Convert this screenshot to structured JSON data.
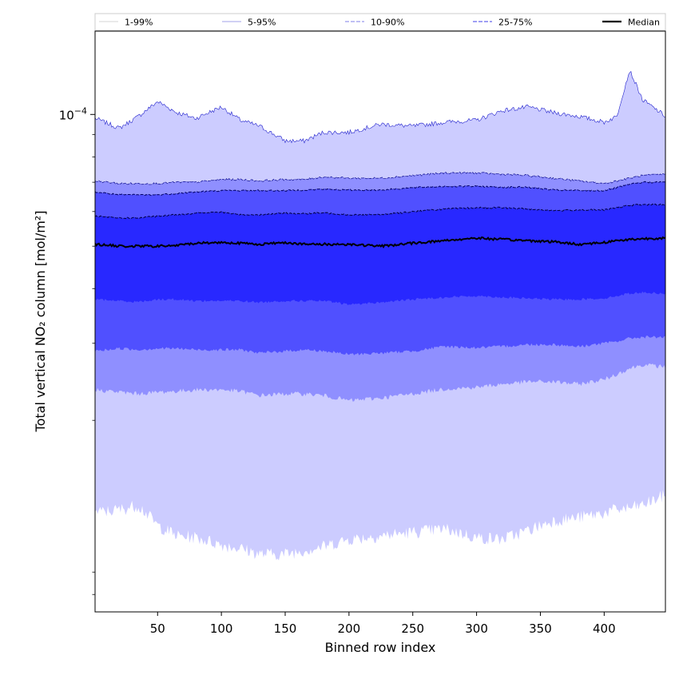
{
  "chart_data": {
    "type": "area",
    "title": "",
    "xlabel": "Binned row index",
    "ylabel": "Total vertical NO₂ column [mol/m²]",
    "x_ticks": [
      50,
      100,
      150,
      200,
      250,
      300,
      350,
      400
    ],
    "y_tick_labels": [
      {
        "value": 0.0001,
        "base": "10",
        "exponent": "−4"
      }
    ],
    "yscale": "log",
    "xlim": [
      1,
      448
    ],
    "ylim": [
      7.3e-06,
      0.000155
    ],
    "legend_position": "top",
    "legend": [
      {
        "label": "1-99%",
        "color": "#dddddd",
        "style": "solid"
      },
      {
        "label": "5-95%",
        "color": "#b3b3ee",
        "style": "solid"
      },
      {
        "label": "10-90%",
        "color": "#9999ee",
        "style": "dashed"
      },
      {
        "label": "25-75%",
        "color": "#6666ee",
        "style": "dashed"
      },
      {
        "label": "Median",
        "color": "#000000",
        "style": "solid"
      }
    ],
    "x": [
      1,
      20,
      35,
      50,
      65,
      80,
      100,
      115,
      130,
      150,
      165,
      180,
      200,
      225,
      250,
      275,
      300,
      320,
      340,
      360,
      380,
      400,
      410,
      420,
      430,
      448
    ],
    "bands": [
      {
        "name": "1-99%",
        "color": "#ccccff",
        "upper": [
          9.8e-05,
          9.3e-05,
          9.9e-05,
          0.000107,
          0.000101,
          9.8e-05,
          0.000104,
          9.7e-05,
          9.4e-05,
          8.7e-05,
          8.7e-05,
          9.1e-05,
          9.1e-05,
          9.5e-05,
          9.4e-05,
          9.6e-05,
          9.7e-05,
          0.000102,
          0.000104,
          0.000101,
          9.9e-05,
          9.6e-05,
          9.9e-05,
          0.000126,
          0.000108,
          9.9e-05
        ],
        "lower": [
          1.23e-05,
          1.25e-05,
          1.28e-05,
          1.15e-05,
          1.09e-05,
          1.08e-05,
          1.04e-05,
          1.02e-05,
          9.9e-06,
          9.9e-06,
          1.01e-05,
          1.03e-05,
          1.07e-05,
          1.09e-05,
          1.11e-05,
          1.13e-05,
          1.08e-05,
          1.07e-05,
          1.12e-05,
          1.18e-05,
          1.2e-05,
          1.23e-05,
          1.25e-05,
          1.26e-05,
          1.28e-05,
          1.35e-05
        ]
      },
      {
        "name": "5-95%",
        "color": "#8f8fff",
        "upper": [
          7.05e-05,
          6.95e-05,
          6.95e-05,
          6.95e-05,
          7e-05,
          7e-05,
          7.1e-05,
          7.1e-05,
          7.05e-05,
          7.1e-05,
          7.1e-05,
          7.2e-05,
          7.15e-05,
          7.15e-05,
          7.25e-05,
          7.35e-05,
          7.35e-05,
          7.3e-05,
          7.25e-05,
          7.15e-05,
          7.05e-05,
          6.95e-05,
          7.05e-05,
          7.15e-05,
          7.25e-05,
          7.3e-05
        ],
        "lower": [
          2.35e-05,
          2.32e-05,
          2.3e-05,
          2.32e-05,
          2.33e-05,
          2.35e-05,
          2.35e-05,
          2.33e-05,
          2.28e-05,
          2.3e-05,
          2.3e-05,
          2.28e-05,
          2.22e-05,
          2.25e-05,
          2.3e-05,
          2.36e-05,
          2.38e-05,
          2.42e-05,
          2.45e-05,
          2.45e-05,
          2.42e-05,
          2.48e-05,
          2.55e-05,
          2.63e-05,
          2.68e-05,
          2.65e-05
        ]
      },
      {
        "name": "10-90%",
        "color": "#5050ff",
        "upper": [
          6.65e-05,
          6.55e-05,
          6.55e-05,
          6.55e-05,
          6.6e-05,
          6.65e-05,
          6.7e-05,
          6.7e-05,
          6.7e-05,
          6.7e-05,
          6.72e-05,
          6.75e-05,
          6.72e-05,
          6.72e-05,
          6.8e-05,
          6.85e-05,
          6.85e-05,
          6.82e-05,
          6.82e-05,
          6.72e-05,
          6.7e-05,
          6.7e-05,
          6.8e-05,
          6.92e-05,
          7e-05,
          7e-05
        ],
        "lower": [
          2.88e-05,
          2.92e-05,
          2.9e-05,
          2.92e-05,
          2.92e-05,
          2.9e-05,
          2.9e-05,
          2.9e-05,
          2.85e-05,
          2.88e-05,
          2.9e-05,
          2.88e-05,
          2.83e-05,
          2.85e-05,
          2.88e-05,
          2.95e-05,
          2.93e-05,
          2.95e-05,
          2.98e-05,
          2.98e-05,
          2.95e-05,
          3e-05,
          3.03e-05,
          3.08e-05,
          3.1e-05,
          3.1e-05
        ]
      },
      {
        "name": "25-75%",
        "color": "#2828ff",
        "upper": [
          5.85e-05,
          5.8e-05,
          5.8e-05,
          5.85e-05,
          5.9e-05,
          5.95e-05,
          5.98e-05,
          5.9e-05,
          5.9e-05,
          5.95e-05,
          5.93e-05,
          5.96e-05,
          5.9e-05,
          5.9e-05,
          6e-05,
          6.08e-05,
          6.12e-05,
          6.12e-05,
          6.08e-05,
          6.03e-05,
          6.05e-05,
          6.05e-05,
          6.12e-05,
          6.2e-05,
          6.22e-05,
          6.22e-05
        ],
        "lower": [
          3.78e-05,
          3.75e-05,
          3.73e-05,
          3.78e-05,
          3.78e-05,
          3.75e-05,
          3.75e-05,
          3.75e-05,
          3.72e-05,
          3.75e-05,
          3.75e-05,
          3.75e-05,
          3.68e-05,
          3.72e-05,
          3.78e-05,
          3.82e-05,
          3.85e-05,
          3.82e-05,
          3.8e-05,
          3.78e-05,
          3.78e-05,
          3.8e-05,
          3.85e-05,
          3.9e-05,
          3.92e-05,
          3.9e-05
        ]
      }
    ],
    "median": {
      "name": "Median",
      "color": "#000000",
      "values": [
        5.05e-05,
        5e-05,
        5e-05,
        5e-05,
        5.02e-05,
        5.08e-05,
        5.1e-05,
        5.08e-05,
        5.05e-05,
        5.1e-05,
        5.05e-05,
        5.05e-05,
        5.05e-05,
        5e-05,
        5.08e-05,
        5.15e-05,
        5.22e-05,
        5.18e-05,
        5.15e-05,
        5.12e-05,
        5.05e-05,
        5.1e-05,
        5.15e-05,
        5.18e-05,
        5.2e-05,
        5.22e-05
      ]
    }
  }
}
